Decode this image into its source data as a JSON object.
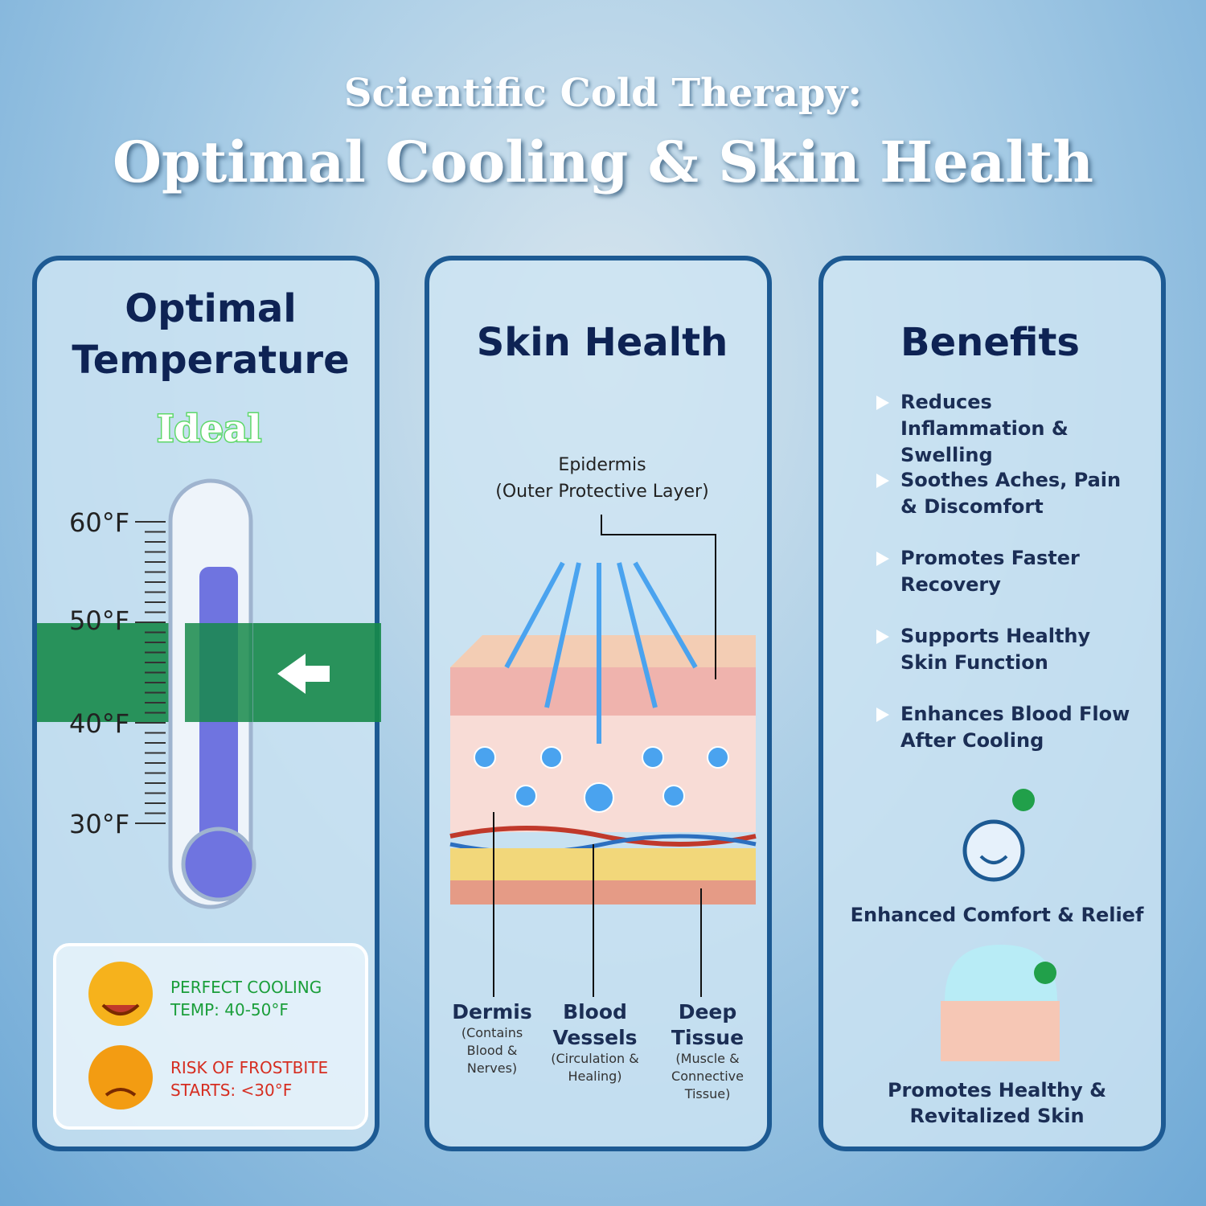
{
  "header": {
    "kicker": "Scientific Cold Therapy:",
    "title": "Optimal Cooling & Skin Health"
  },
  "temperature_panel": {
    "title": "Optimal Temperature",
    "badge": "Ideal",
    "scale": [
      "60°F",
      "50°F",
      "40°F",
      "30°F"
    ],
    "legend": [
      {
        "text": "PERFECT COOLING TEMP: 40-50°F"
      },
      {
        "text": "RISK OF FROSTBITE STARTS: <30°F"
      }
    ]
  },
  "skin_panel": {
    "title": "Skin Health",
    "top_label": "Epidermis",
    "top_note": "(Outer Protective Layer)",
    "layers": [
      {
        "name": "Dermis",
        "note": "(Contains Blood & Nerves)"
      },
      {
        "name": "Blood Vessels",
        "note": "(Circulation & Healing)"
      },
      {
        "name": "Deep Tissue",
        "note": "(Muscle & Connective Tissue)"
      }
    ]
  },
  "benefits_panel": {
    "title": "Benefits",
    "items": [
      "Reduces Inflammation & Swelling",
      "Soothes Aches, Pain & Discomfort",
      "Promotes Faster Recovery",
      "Supports Healthy Skin Function",
      "Enhances Blood Flow After Cooling"
    ],
    "features": [
      "Enhanced Comfort & Relief",
      "Promotes Healthy & Revitalized Skin"
    ]
  }
}
